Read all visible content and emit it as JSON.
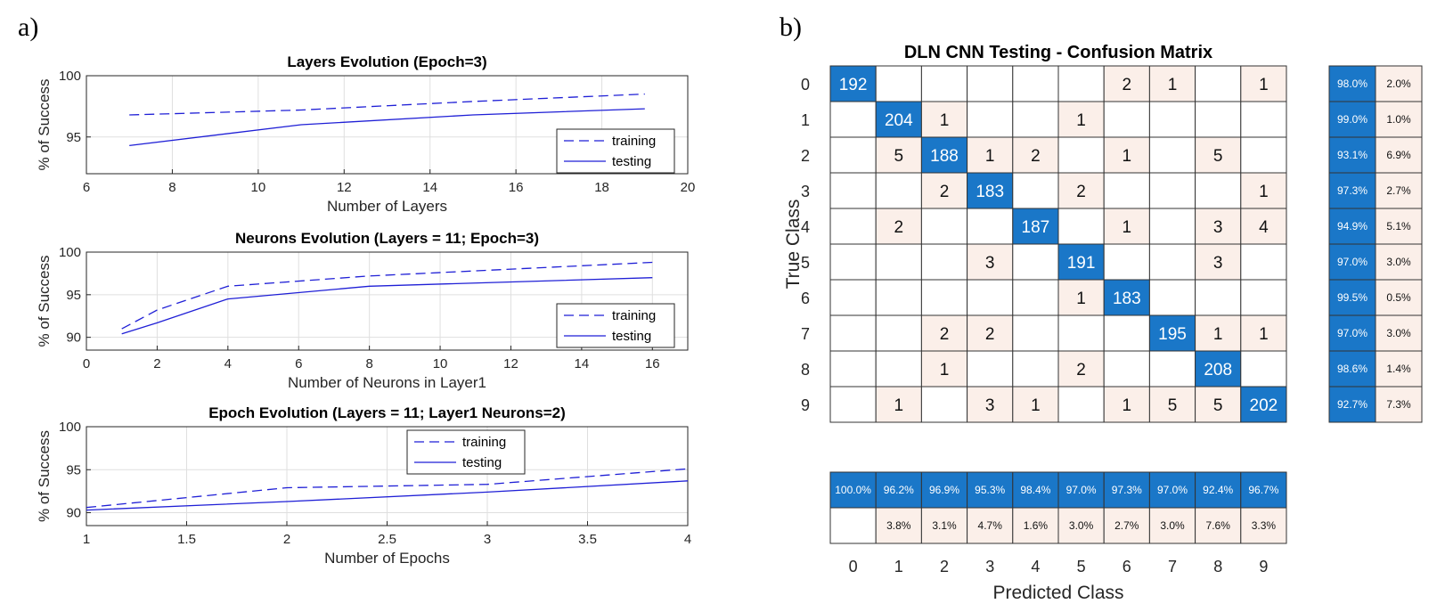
{
  "panels": {
    "a": "a)",
    "b": "b)"
  },
  "chart_data": [
    {
      "type": "line",
      "title": "Layers Evolution (Epoch=3)",
      "xlabel": "Number of Layers",
      "ylabel": "% of Success",
      "xlim": [
        6,
        20
      ],
      "ylim": [
        92,
        100
      ],
      "xticks": [
        "6",
        "8",
        "10",
        "12",
        "14",
        "16",
        "18",
        "20"
      ],
      "yticks": [
        "95",
        "100"
      ],
      "grid": true,
      "legend_position": "bottom-right",
      "series": [
        {
          "name": "training",
          "style": "dashed",
          "color": "#1f1fd6",
          "x": [
            7,
            11,
            15,
            19
          ],
          "values": [
            96.8,
            97.2,
            97.9,
            98.5
          ]
        },
        {
          "name": "testing",
          "style": "solid",
          "color": "#1f1fd6",
          "x": [
            7,
            11,
            15,
            19
          ],
          "values": [
            94.3,
            96.0,
            96.8,
            97.3
          ]
        }
      ]
    },
    {
      "type": "line",
      "title": "Neurons Evolution (Layers = 11; Epoch=3)",
      "xlabel": "Number of Neurons in Layer1",
      "ylabel": "% of Success",
      "xlim": [
        0,
        17
      ],
      "ylim": [
        88.5,
        100
      ],
      "xticks": [
        "0",
        "2",
        "4",
        "6",
        "8",
        "10",
        "12",
        "14",
        "16"
      ],
      "yticks": [
        "90",
        "95",
        "100"
      ],
      "grid": true,
      "legend_position": "bottom-right",
      "series": [
        {
          "name": "training",
          "style": "dashed",
          "color": "#1f1fd6",
          "x": [
            1,
            2,
            4,
            8,
            16
          ],
          "values": [
            91.0,
            93.2,
            96.0,
            97.2,
            98.8
          ]
        },
        {
          "name": "testing",
          "style": "solid",
          "color": "#1f1fd6",
          "x": [
            1,
            2,
            4,
            8,
            16
          ],
          "values": [
            90.4,
            91.7,
            94.5,
            96.0,
            97.0
          ]
        }
      ]
    },
    {
      "type": "line",
      "title": "Epoch Evolution (Layers = 11; Layer1 Neurons=2)",
      "xlabel": "Number of Epochs",
      "ylabel": "% of Success",
      "xlim": [
        1,
        4
      ],
      "ylim": [
        88.5,
        100
      ],
      "xticks": [
        "1",
        "1.5",
        "2",
        "2.5",
        "3",
        "3.5",
        "4"
      ],
      "yticks": [
        "90",
        "95",
        "100"
      ],
      "grid": true,
      "legend_position": "top-center",
      "series": [
        {
          "name": "training",
          "style": "dashed",
          "color": "#1f1fd6",
          "x": [
            1,
            2,
            3,
            4
          ],
          "values": [
            90.6,
            92.9,
            93.3,
            95.1
          ]
        },
        {
          "name": "testing",
          "style": "solid",
          "color": "#1f1fd6",
          "x": [
            1,
            2,
            3,
            4
          ],
          "values": [
            90.3,
            91.3,
            92.4,
            93.7
          ]
        }
      ]
    },
    {
      "type": "heatmap",
      "title": "DLN CNN Testing - Confusion Matrix",
      "xlabel": "Predicted Class",
      "ylabel": "True Class",
      "classes": [
        "0",
        "1",
        "2",
        "3",
        "4",
        "5",
        "6",
        "7",
        "8",
        "9"
      ],
      "matrix": [
        [
          192,
          0,
          0,
          0,
          0,
          0,
          2,
          1,
          0,
          1
        ],
        [
          0,
          204,
          1,
          0,
          0,
          1,
          0,
          0,
          0,
          0
        ],
        [
          0,
          5,
          188,
          1,
          2,
          0,
          1,
          0,
          5,
          0
        ],
        [
          0,
          0,
          2,
          183,
          0,
          2,
          0,
          0,
          0,
          1
        ],
        [
          0,
          2,
          0,
          0,
          187,
          0,
          1,
          0,
          3,
          4
        ],
        [
          0,
          0,
          0,
          3,
          0,
          191,
          0,
          0,
          3,
          0
        ],
        [
          0,
          0,
          0,
          0,
          0,
          1,
          183,
          0,
          0,
          0
        ],
        [
          0,
          0,
          2,
          2,
          0,
          0,
          0,
          195,
          1,
          1
        ],
        [
          0,
          0,
          1,
          0,
          0,
          2,
          0,
          0,
          208,
          0
        ],
        [
          0,
          1,
          0,
          3,
          1,
          0,
          1,
          5,
          5,
          202
        ]
      ],
      "row_summary": [
        [
          "98.0%",
          "2.0%"
        ],
        [
          "99.0%",
          "1.0%"
        ],
        [
          "93.1%",
          "6.9%"
        ],
        [
          "97.3%",
          "2.7%"
        ],
        [
          "94.9%",
          "5.1%"
        ],
        [
          "97.0%",
          "3.0%"
        ],
        [
          "99.5%",
          "0.5%"
        ],
        [
          "97.0%",
          "3.0%"
        ],
        [
          "98.6%",
          "1.4%"
        ],
        [
          "92.7%",
          "7.3%"
        ]
      ],
      "col_summary_correct": [
        "100.0%",
        "96.2%",
        "96.9%",
        "95.3%",
        "98.4%",
        "97.0%",
        "97.3%",
        "97.0%",
        "92.4%",
        "96.7%"
      ],
      "col_summary_error": [
        "",
        "3.8%",
        "3.1%",
        "4.7%",
        "1.6%",
        "3.0%",
        "2.7%",
        "3.0%",
        "7.6%",
        "3.3%"
      ],
      "colors": {
        "diagonal": "#1a77c8",
        "offdiagonal": "#fbefe9",
        "empty": "#ffffff"
      }
    }
  ]
}
